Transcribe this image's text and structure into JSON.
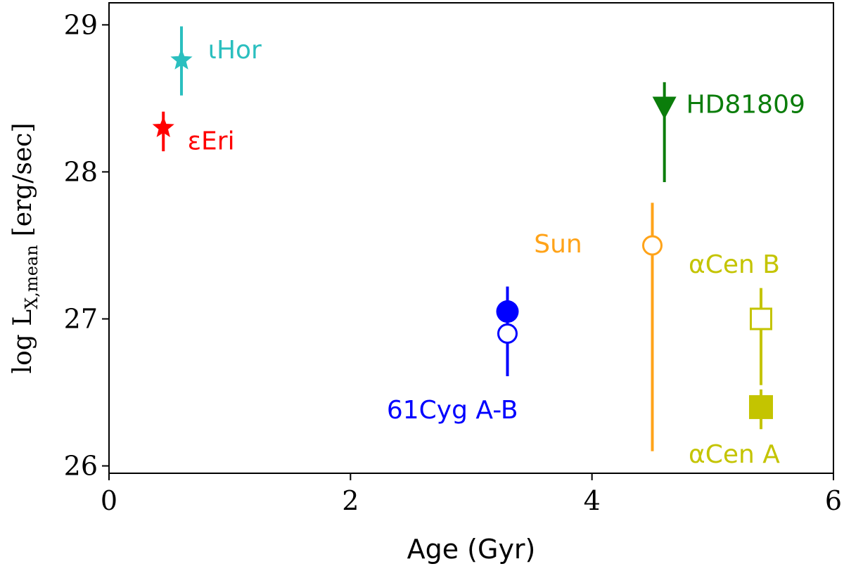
{
  "chart_data": {
    "type": "scatter",
    "xlabel": "Age (Gyr)",
    "ylabel": {
      "main": "log L",
      "sub": "X,mean",
      "unit": "[erg/sec]"
    },
    "xlim": [
      0,
      6
    ],
    "ylim": [
      25.95,
      29.15
    ],
    "xticks": [
      0,
      2,
      4,
      6
    ],
    "yticks": [
      26,
      27,
      28,
      29
    ],
    "grid": false,
    "legend": "none",
    "points": [
      {
        "label": "ιHor",
        "x": 0.6,
        "y": 28.76,
        "y_err_low": 28.52,
        "y_err_high": 28.99,
        "marker": "star",
        "fill": "filled",
        "color": "#2bbfbf"
      },
      {
        "label": "εEri",
        "x": 0.45,
        "y": 28.3,
        "y_err_low": 28.14,
        "y_err_high": 28.41,
        "marker": "star",
        "fill": "filled",
        "color": "#ff0000"
      },
      {
        "label": "HD81809",
        "x": 4.6,
        "y": 28.43,
        "y_err_low": 27.93,
        "y_err_high": 28.61,
        "marker": "triangle-down",
        "fill": "filled",
        "color": "#0b7d0b"
      },
      {
        "label": "Sun",
        "x": 4.5,
        "y": 27.5,
        "y_err_low": 26.1,
        "y_err_high": 27.79,
        "marker": "circle",
        "fill": "open",
        "color": "#ffa319"
      },
      {
        "label": "61Cyg A",
        "x": 3.3,
        "y": 27.05,
        "y_err_low": 26.61,
        "y_err_high": 27.22,
        "marker": "circle",
        "fill": "filled",
        "color": "#0000ff"
      },
      {
        "label": "61Cyg B",
        "x": 3.3,
        "y": 26.9,
        "y_err_low": 26.61,
        "y_err_high": 27.22,
        "marker": "circle",
        "fill": "open",
        "color": "#0000ff"
      },
      {
        "label": "αCen B",
        "x": 5.4,
        "y": 27.0,
        "y_err_low": 26.55,
        "y_err_high": 27.21,
        "marker": "square",
        "fill": "open",
        "color": "#c4c400"
      },
      {
        "label": "αCen A",
        "x": 5.4,
        "y": 26.4,
        "y_err_low": 26.25,
        "y_err_high": 26.52,
        "marker": "square",
        "fill": "filled",
        "color": "#c4c400"
      }
    ],
    "annotations": [
      {
        "text": "ιHor",
        "x": 0.82,
        "y": 28.83,
        "color": "#2bbfbf"
      },
      {
        "text": "εEri",
        "x": 0.65,
        "y": 28.21,
        "color": "#ff0000"
      },
      {
        "text": "HD81809",
        "x": 4.78,
        "y": 28.46,
        "color": "#0b7d0b"
      },
      {
        "text": "Sun",
        "x": 3.52,
        "y": 27.51,
        "color": "#ffa319"
      },
      {
        "text": "αCen B",
        "x": 4.8,
        "y": 27.37,
        "color": "#c4c400"
      },
      {
        "text": "61Cyg A-B",
        "x": 2.3,
        "y": 26.38,
        "color": "#0000ff"
      },
      {
        "text": "αCen A",
        "x": 4.8,
        "y": 26.08,
        "color": "#c4c400"
      }
    ]
  }
}
